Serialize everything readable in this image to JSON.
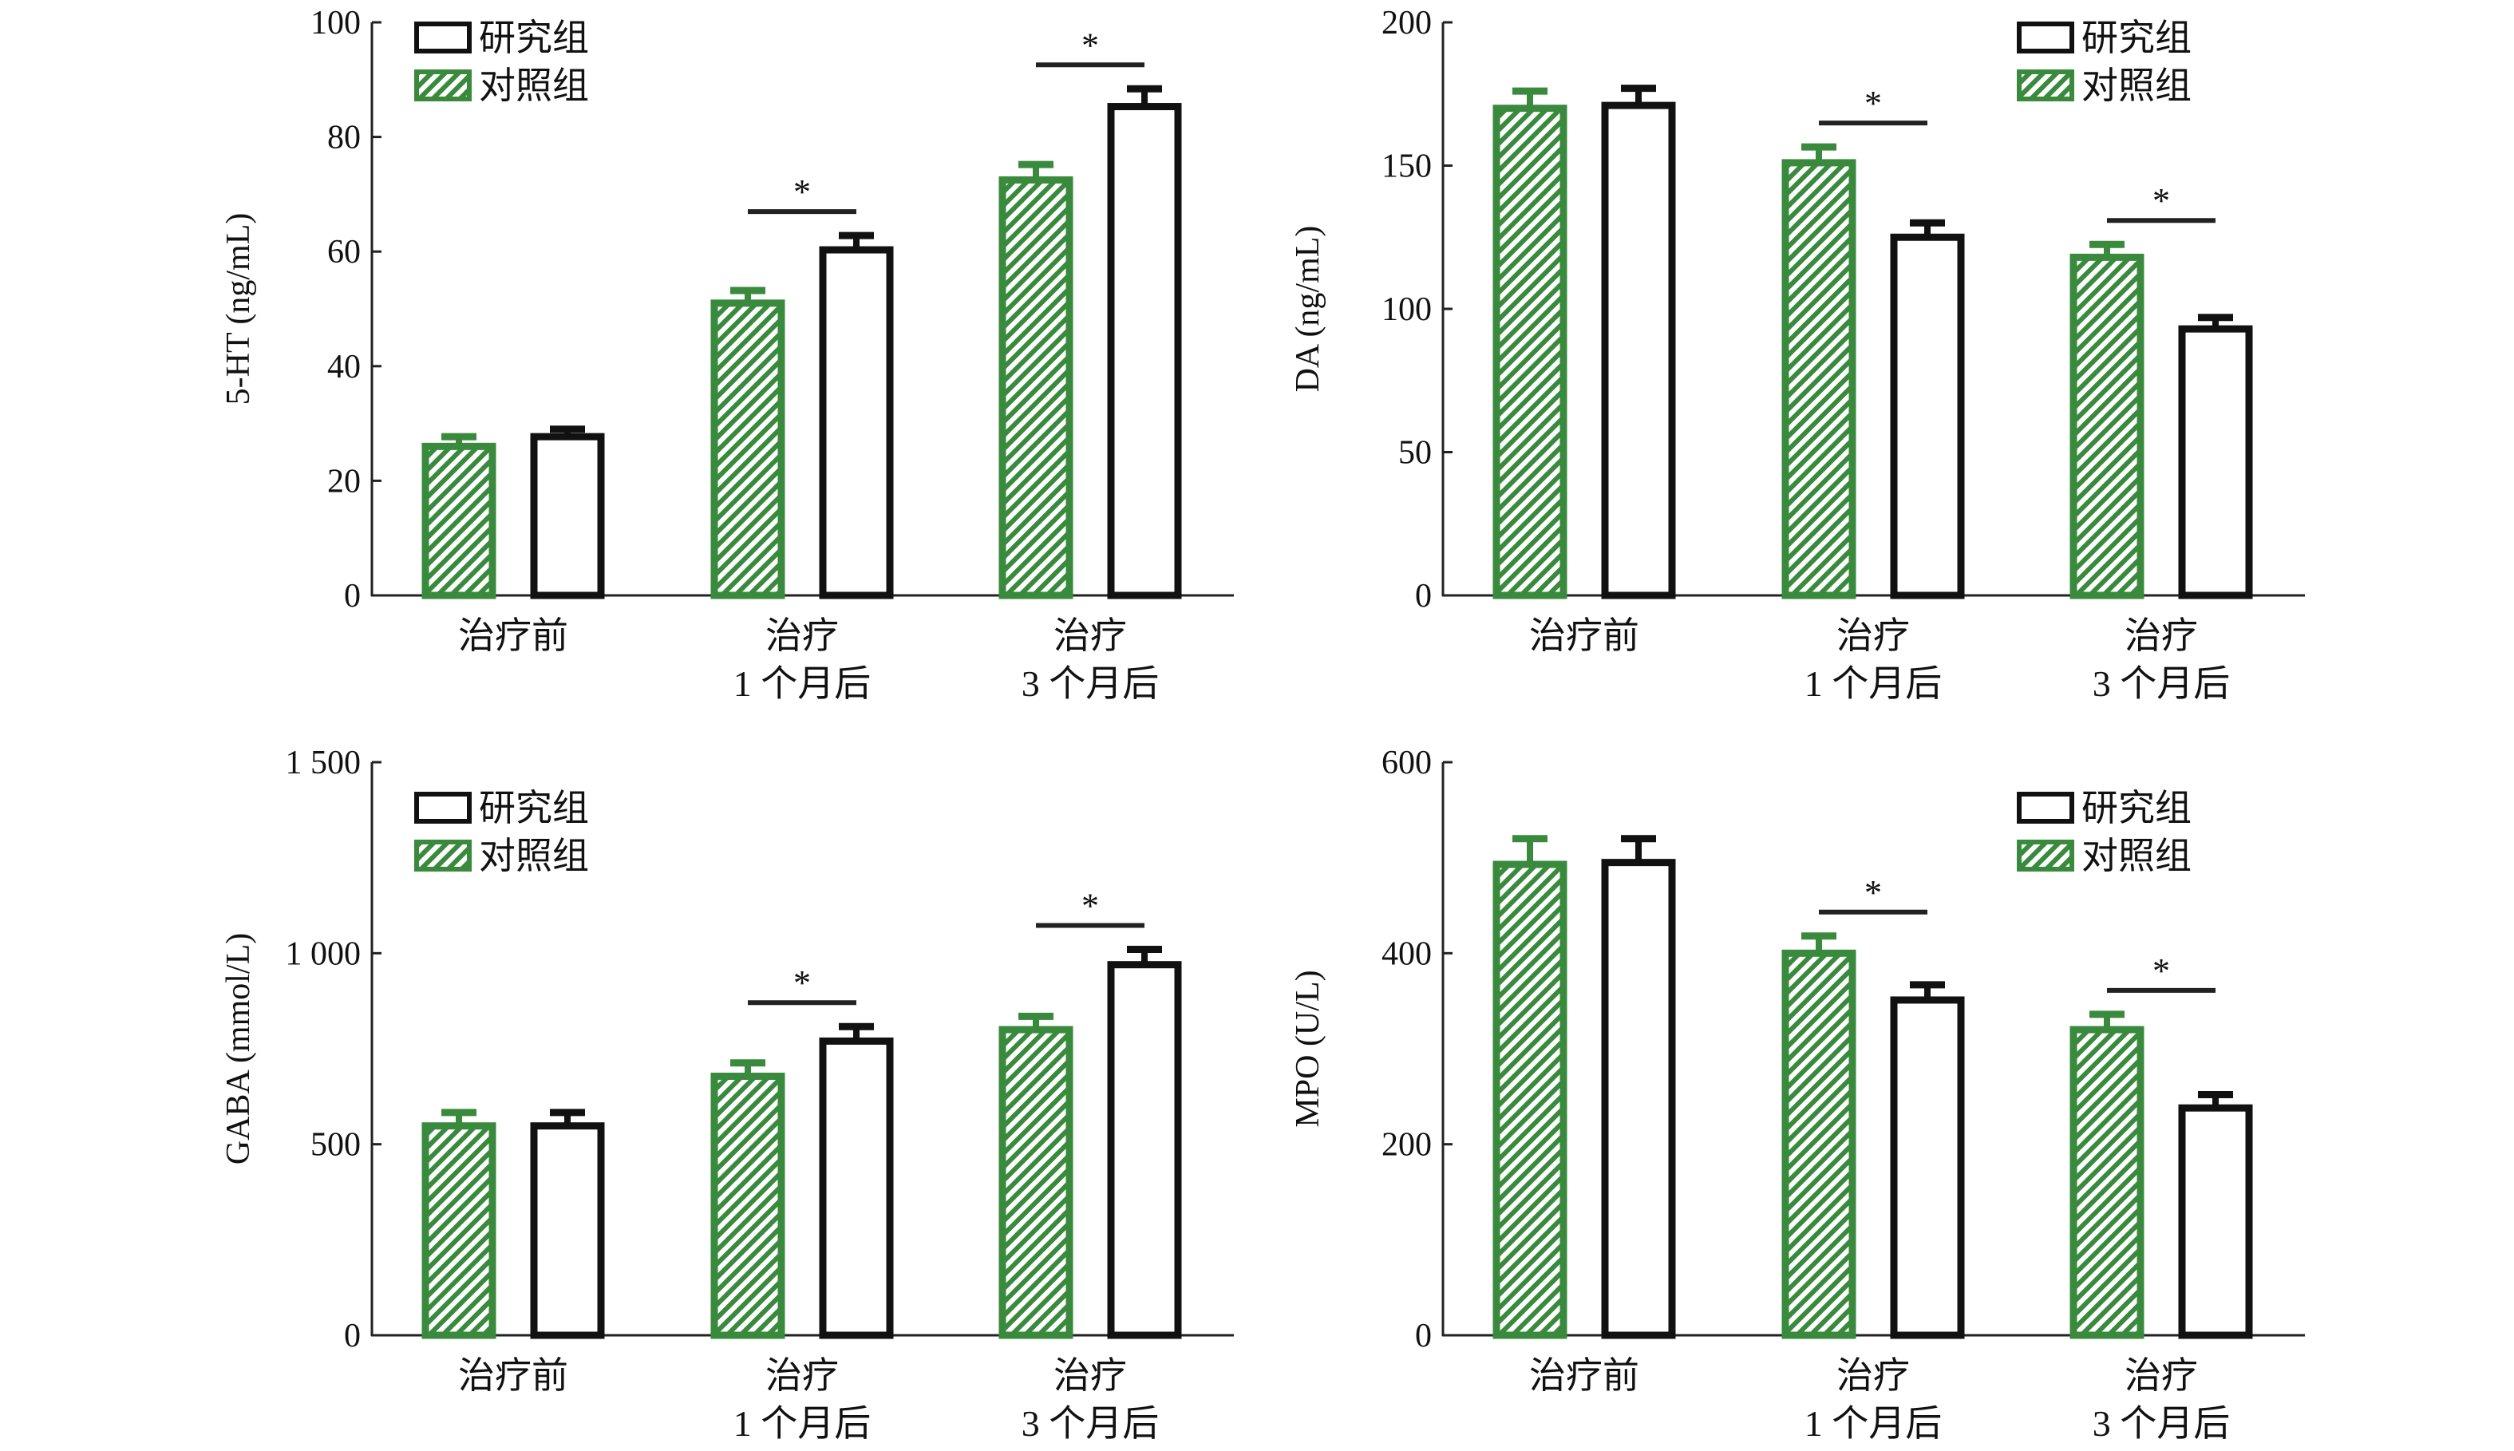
{
  "chart_data": [
    {
      "type": "bar",
      "ylabel": "5-HT (ng/mL)",
      "ylim": [
        0,
        100
      ],
      "yticks": [
        0,
        20,
        40,
        60,
        80,
        100
      ],
      "ytick_labels": [
        "0",
        "20",
        "40",
        "60",
        "80",
        "100"
      ],
      "categories": [
        [
          "治疗前"
        ],
        [
          "治疗",
          "1 个月后"
        ],
        [
          "治疗",
          "3 个月后"
        ]
      ],
      "legend_position": "top-left",
      "series": [
        {
          "name": "对照组",
          "values": [
            26,
            51,
            72.5
          ],
          "errors": [
            1.7,
            2.2,
            2.7
          ]
        },
        {
          "name": "研究组",
          "values": [
            27.7,
            60.3,
            85.3
          ],
          "errors": [
            1.3,
            2.5,
            3.1
          ]
        }
      ],
      "significance": [
        {
          "group": 1,
          "label": "*"
        },
        {
          "group": 2,
          "label": "*"
        }
      ]
    },
    {
      "type": "bar",
      "ylabel": "DA (ng/mL)",
      "ylim": [
        0,
        200
      ],
      "yticks": [
        0,
        50,
        100,
        150,
        200
      ],
      "ytick_labels": [
        "0",
        "50",
        "100",
        "150",
        "200"
      ],
      "categories": [
        [
          "治疗前"
        ],
        [
          "治疗",
          "1 个月后"
        ],
        [
          "治疗",
          "3 个月后"
        ]
      ],
      "legend_position": "top-right",
      "series": [
        {
          "name": "对照组",
          "values": [
            170,
            151,
            118
          ],
          "errors": [
            6,
            5.5,
            4.5
          ]
        },
        {
          "name": "研究组",
          "values": [
            171,
            125,
            93
          ],
          "errors": [
            6,
            5,
            4
          ]
        }
      ],
      "significance": [
        {
          "group": 1,
          "label": "*"
        },
        {
          "group": 2,
          "label": "*"
        }
      ]
    },
    {
      "type": "bar",
      "ylabel": "GABA (mmol/L)",
      "ylim": [
        0,
        1500
      ],
      "yticks": [
        0,
        500,
        1000,
        1500
      ],
      "ytick_labels": [
        "0",
        "500",
        "1 000",
        "1 500"
      ],
      "categories": [
        [
          "治疗前"
        ],
        [
          "治疗",
          "1 个月后"
        ],
        [
          "治疗",
          "3 个月后"
        ]
      ],
      "legend_position": "top-left",
      "series": [
        {
          "name": "对照组",
          "values": [
            548,
            678,
            800
          ],
          "errors": [
            35,
            35,
            35
          ]
        },
        {
          "name": "研究组",
          "values": [
            548,
            770,
            970
          ],
          "errors": [
            35,
            38,
            40
          ]
        }
      ],
      "significance": [
        {
          "group": 1,
          "label": "*"
        },
        {
          "group": 2,
          "label": "*"
        }
      ]
    },
    {
      "type": "bar",
      "ylabel": "MPO (U/L)",
      "ylim": [
        0,
        600
      ],
      "yticks": [
        0,
        200,
        400,
        600
      ],
      "ytick_labels": [
        "0",
        "200",
        "400",
        "600"
      ],
      "categories": [
        [
          "治疗前"
        ],
        [
          "治疗",
          "1 个月后"
        ],
        [
          "治疗",
          "3 个月后"
        ]
      ],
      "legend_position": "top-right",
      "series": [
        {
          "name": "对照组",
          "values": [
            493,
            400,
            320
          ],
          "errors": [
            27,
            18,
            16
          ]
        },
        {
          "name": "研究组",
          "values": [
            495,
            351,
            238
          ],
          "errors": [
            25,
            16,
            14
          ]
        }
      ],
      "significance": [
        {
          "group": 1,
          "label": "*"
        },
        {
          "group": 2,
          "label": "*"
        }
      ]
    }
  ],
  "colors": {
    "control": "#3a8a3e",
    "study": "#111111",
    "axis": "#222222"
  }
}
